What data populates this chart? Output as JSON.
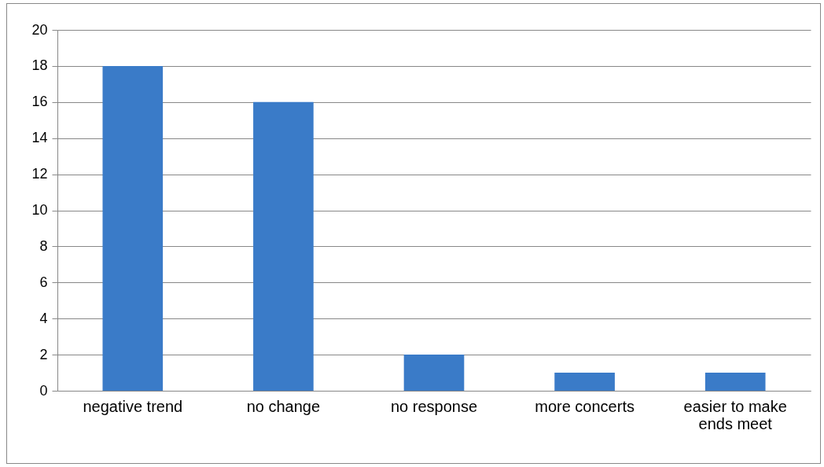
{
  "chart_data": {
    "type": "bar",
    "categories": [
      "negative trend",
      "no change",
      "no response",
      "more concerts",
      "easier to make ends meet"
    ],
    "values": [
      18,
      16,
      2,
      1,
      1
    ],
    "color": "#3a7bc8",
    "ylim": [
      0,
      20
    ],
    "yticks": [
      0,
      2,
      4,
      6,
      8,
      10,
      12,
      14,
      16,
      18,
      20
    ],
    "grid": "y"
  }
}
